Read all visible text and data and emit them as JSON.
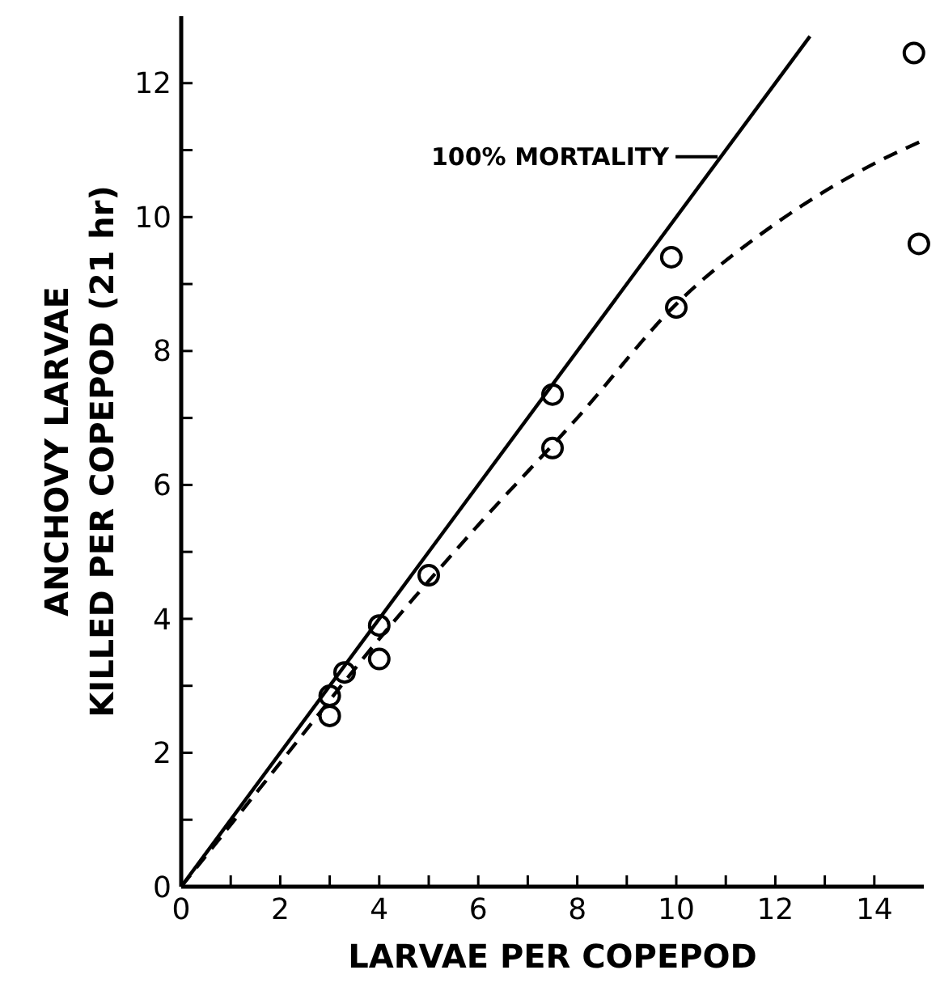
{
  "chart_data": {
    "type": "scatter",
    "xlabel": "LARVAE PER COPEPOD",
    "ylabel": "ANCHOVY LARVAE\nKILLED PER COPEPOD (21 hr)",
    "xlim": [
      0,
      15
    ],
    "ylim": [
      0,
      13
    ],
    "xticks": [
      0,
      {
        "value": 1,
        "label": null
      },
      2,
      {
        "value": 3,
        "label": null
      },
      4,
      {
        "value": 5,
        "label": null
      },
      6,
      {
        "value": 7,
        "label": null
      },
      8,
      {
        "value": 9,
        "label": null
      },
      10,
      {
        "value": 11,
        "label": null
      },
      12,
      {
        "value": 13,
        "label": null
      },
      14
    ],
    "yticks": [
      0,
      {
        "value": 1,
        "label": null
      },
      2,
      {
        "value": 3,
        "label": null
      },
      4,
      {
        "value": 5,
        "label": null
      },
      6,
      {
        "value": 7,
        "label": null
      },
      8,
      {
        "value": 9,
        "label": null
      },
      10,
      {
        "value": 11,
        "label": null
      },
      12
    ],
    "grid": false,
    "series": [
      {
        "color": "#000000",
        "marker": "circle",
        "x": [
          3,
          3,
          3.3,
          4,
          4,
          5,
          7.5,
          7.5,
          9.9,
          10,
          14.8,
          14.9
        ],
        "values": [
          2.85,
          2.55,
          3.2,
          3.9,
          3.4,
          4.65,
          7.35,
          6.55,
          9.4,
          8.65,
          12.45,
          9.6
        ]
      },
      {
        "type": "line",
        "color": "#000000",
        "line_style": "solid",
        "marker": "none",
        "x": [
          0,
          12.7
        ],
        "values": [
          0,
          12.7
        ]
      },
      {
        "type": "line",
        "color": "#000000",
        "line_style": "dashed",
        "marker": "none",
        "x": [
          0,
          2,
          4,
          6,
          8,
          10,
          12,
          14,
          15
        ],
        "values": [
          0,
          1.85,
          3.7,
          5.4,
          7.0,
          8.7,
          9.9,
          10.8,
          11.15
        ]
      }
    ],
    "annotations": [
      {
        "text": "100% MORTALITY",
        "x": 10.9,
        "y": 10.9
      }
    ]
  }
}
